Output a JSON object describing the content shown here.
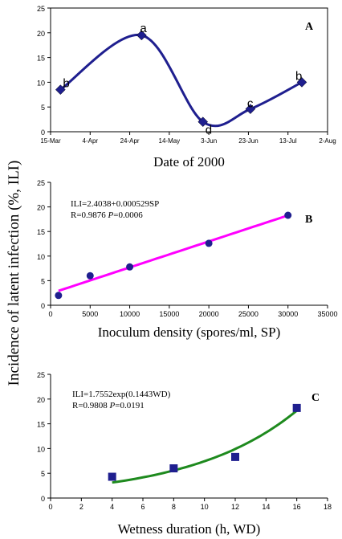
{
  "figure": {
    "ylabel": "Incidence of latent infection (%, ILI)"
  },
  "chart_data": [
    {
      "type": "line",
      "panel": "A",
      "xlabel": "Date of 2000",
      "x_ticks": [
        "15-Mar",
        "4-Apr",
        "24-Apr",
        "14-May",
        "3-Jun",
        "23-Jun",
        "13-Jul",
        "2-Aug"
      ],
      "x_tick_dates": [
        "2000-03-15",
        "2000-04-04",
        "2000-04-24",
        "2000-05-14",
        "2000-06-03",
        "2000-06-23",
        "2000-07-13",
        "2000-08-02"
      ],
      "xlim": [
        "2000-03-15",
        "2000-08-02"
      ],
      "ylim": [
        0,
        25
      ],
      "y_ticks": [
        0,
        5,
        10,
        15,
        20,
        25
      ],
      "series": [
        {
          "x": [
            "2000-03-20",
            "2000-04-30",
            "2000-05-31",
            "2000-06-24",
            "2000-07-20"
          ],
          "y": [
            8.5,
            19.5,
            2,
            4.6,
            10
          ],
          "point_labels": [
            "b",
            "a",
            "d",
            "c",
            "b"
          ],
          "color": "#1f1f8f",
          "marker": "diamond",
          "smooth": true
        }
      ]
    },
    {
      "type": "scatter",
      "panel": "B",
      "xlabel": "Inoculum density (spores/ml, SP)",
      "x_ticks": [
        0,
        5000,
        10000,
        15000,
        20000,
        25000,
        30000,
        35000
      ],
      "xlim": [
        0,
        35000
      ],
      "ylim": [
        0,
        25
      ],
      "y_ticks": [
        0,
        5,
        10,
        15,
        20,
        25
      ],
      "series": [
        {
          "x": [
            1000,
            5000,
            10000,
            20000,
            30000
          ],
          "y": [
            2,
            6,
            7.8,
            12.6,
            18.3
          ],
          "color": "#1f1f8f",
          "marker": "circle"
        }
      ],
      "fit": {
        "color": "#ff00ff",
        "x_range": [
          1000,
          30000
        ],
        "kind": "linear",
        "intercept": 2.4038,
        "slope": 0.000529
      },
      "annotation": {
        "line1": "ILI=2.4038+0.000529SP",
        "line2_prefix": "R=0.9876  ",
        "line2_p": "P",
        "line2_suffix": "=0.0006"
      }
    },
    {
      "type": "scatter",
      "panel": "C",
      "xlabel": "Wetness duration (h, WD)",
      "x_ticks": [
        0,
        2,
        4,
        6,
        8,
        10,
        12,
        14,
        16,
        18
      ],
      "xlim": [
        0,
        18
      ],
      "ylim": [
        0,
        25
      ],
      "y_ticks": [
        0,
        5,
        10,
        15,
        20,
        25
      ],
      "series": [
        {
          "x": [
            4,
            8,
            12,
            16
          ],
          "y": [
            4.3,
            6,
            8.3,
            18.2
          ],
          "color": "#1f1f8f",
          "marker": "square"
        }
      ],
      "fit": {
        "color": "#1e8a1e",
        "x_range": [
          4,
          16
        ],
        "kind": "exponential",
        "a": 1.7552,
        "b": 0.1443
      },
      "annotation": {
        "line1": "ILI=1.7552exp(0.1443WD)",
        "line2_prefix": "R=0.9808  ",
        "line2_p": "P",
        "line2_suffix": "=0.0191"
      }
    }
  ]
}
